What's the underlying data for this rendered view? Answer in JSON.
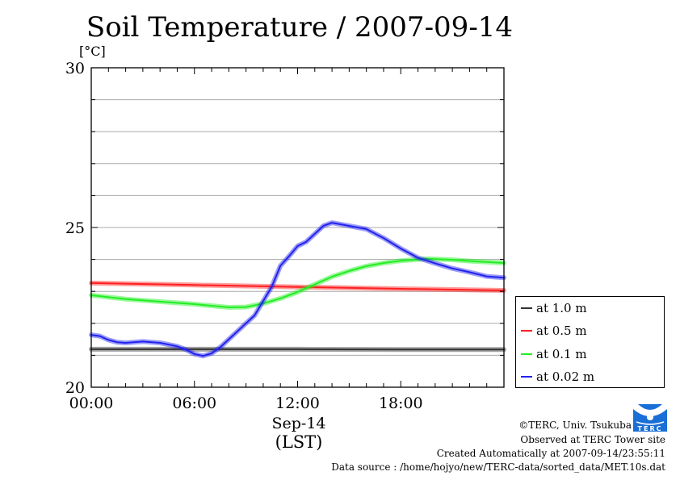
{
  "chart_data": {
    "type": "line",
    "title": "Soil Temperature / 2007-09-14",
    "ylabel": "[°C]",
    "xlabel": "Sep-14",
    "xlabel2": "(LST)",
    "xlim": [
      0,
      24
    ],
    "ylim": [
      20,
      30
    ],
    "yticks": [
      20,
      25,
      30
    ],
    "ytick_labels": [
      "20",
      "25",
      "30"
    ],
    "xticks": [
      0,
      6,
      12,
      18
    ],
    "xtick_labels": [
      "00:00",
      "06:00",
      "12:00",
      "18:00"
    ],
    "grid": true,
    "legend_position": "right",
    "series": [
      {
        "name": "at 1.0 m",
        "color": "#333333",
        "x": [
          0,
          6,
          12,
          18,
          24
        ],
        "values": [
          21.19,
          21.19,
          21.19,
          21.18,
          21.18
        ]
      },
      {
        "name": "at 0.5 m",
        "color": "#ff2020",
        "x": [
          0,
          6,
          12,
          18,
          24
        ],
        "values": [
          23.26,
          23.2,
          23.14,
          23.08,
          23.03
        ]
      },
      {
        "name": "at 0.1 m",
        "color": "#22ee22",
        "x": [
          0,
          2,
          4,
          6,
          8,
          9,
          10,
          11,
          12,
          13,
          14,
          15,
          16,
          17,
          18,
          19,
          19.5,
          21,
          22,
          23,
          24
        ],
        "values": [
          22.88,
          22.76,
          22.68,
          22.6,
          22.5,
          22.51,
          22.62,
          22.78,
          22.98,
          23.22,
          23.46,
          23.64,
          23.79,
          23.89,
          23.96,
          24.0,
          24.02,
          23.99,
          23.95,
          23.92,
          23.89
        ]
      },
      {
        "name": "at 0.02 m",
        "color": "#2222ee",
        "x": [
          0,
          0.5,
          1,
          1.5,
          2,
          3,
          4,
          5,
          5.5,
          6,
          6.5,
          7,
          7.5,
          8,
          9,
          9.5,
          10,
          10.5,
          11,
          11.5,
          12,
          12.5,
          13,
          13.5,
          14,
          15,
          16,
          17,
          18,
          19,
          20,
          21,
          22,
          23,
          24
        ],
        "values": [
          21.64,
          21.6,
          21.48,
          21.41,
          21.39,
          21.43,
          21.39,
          21.28,
          21.18,
          21.04,
          20.98,
          21.06,
          21.25,
          21.5,
          22.0,
          22.25,
          22.7,
          23.15,
          23.8,
          24.1,
          24.42,
          24.55,
          24.8,
          25.05,
          25.15,
          25.05,
          24.95,
          24.67,
          24.34,
          24.05,
          23.88,
          23.72,
          23.6,
          23.47,
          23.43
        ]
      }
    ]
  },
  "footer": {
    "copyright": "©TERC, Univ. Tsukuba",
    "observed": "Observed at TERC Tower site",
    "created": "Created Automatically at 2007-09-14/23:55:11",
    "source": "Data source : /home/hojyo/new/TERC-data/sorted_data/MET.10s.dat",
    "logo_text": "TERC"
  }
}
